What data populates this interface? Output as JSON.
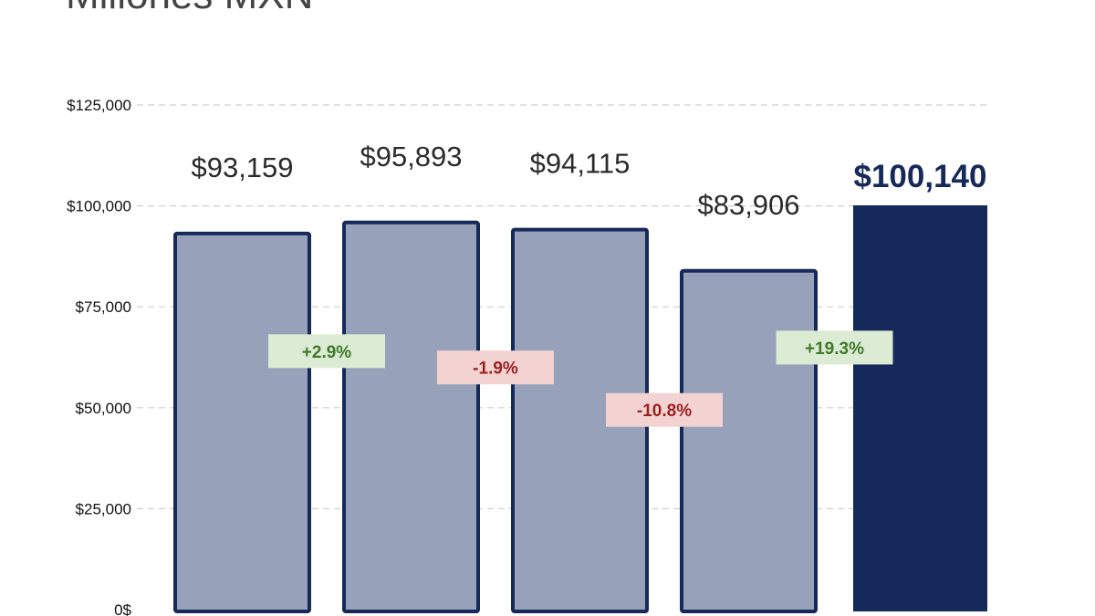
{
  "header": {
    "title": "Millones MXN"
  },
  "chart_data": {
    "type": "bar",
    "title": "Millones MXN",
    "categories": [
      "",
      "",
      "",
      "",
      ""
    ],
    "values": [
      93159,
      95893,
      94115,
      83906,
      100140
    ],
    "value_labels": [
      "$93,159",
      "$95,893",
      "$94,115",
      "$83,906",
      "$100,140"
    ],
    "changes": [
      {
        "label": "+2.9%",
        "direction": "up"
      },
      {
        "label": "-1.9%",
        "direction": "down"
      },
      {
        "label": "-10.8%",
        "direction": "down"
      },
      {
        "label": "+19.3%",
        "direction": "up"
      }
    ],
    "highlight_index": 4,
    "ylim": [
      0,
      125000
    ],
    "yticks": [
      0,
      25000,
      50000,
      75000,
      100000,
      125000
    ],
    "ytick_labels": [
      "0$",
      "$25,000",
      "$50,000",
      "$75,000",
      "$100,000",
      "$125,000"
    ],
    "grid": true,
    "colors": {
      "bar_fill": "#97a1b9",
      "bar_stroke": "#15295a",
      "highlight_fill": "#15295a",
      "up_bg": "#dcebd3",
      "up_text": "#3f7a2a",
      "down_bg": "#f3d2d2",
      "down_text": "#9a1f1f",
      "grid": "#cfcfcf"
    }
  }
}
